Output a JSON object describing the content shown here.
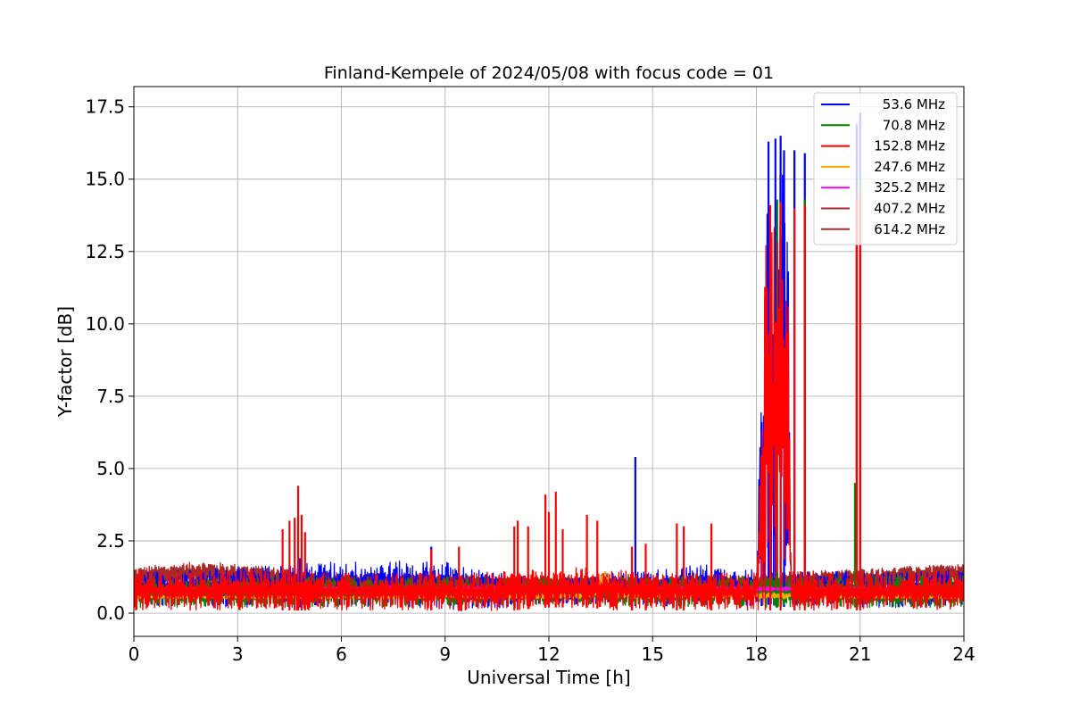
{
  "chart_data": {
    "type": "line",
    "title": "Finland-Kempele of 2024/05/08 with focus code = 01",
    "xlabel": "Universal Time [h]",
    "ylabel": "Y-factor [dB]",
    "xlim": [
      0,
      24
    ],
    "ylim": [
      -0.8,
      18.2
    ],
    "xticks": [
      0,
      3,
      6,
      9,
      12,
      15,
      18,
      21,
      24
    ],
    "xtick_labels": [
      "0",
      "3",
      "6",
      "9",
      "12",
      "15",
      "18",
      "21",
      "24"
    ],
    "yticks": [
      0.0,
      2.5,
      5.0,
      7.5,
      10.0,
      12.5,
      15.0,
      17.5
    ],
    "ytick_labels": [
      "0.0",
      "2.5",
      "5.0",
      "7.5",
      "10.0",
      "12.5",
      "15.0",
      "17.5"
    ],
    "grid": true,
    "legend_position": "top-right",
    "series": [
      {
        "name": "53.6 MHz",
        "color": "#0000ff",
        "band": [
          [
            0,
            0.3,
            1.4
          ],
          [
            3,
            0.2,
            1.6
          ],
          [
            4.5,
            0.2,
            1.7
          ],
          [
            6,
            0.2,
            1.8
          ],
          [
            8,
            0.2,
            1.8
          ],
          [
            9,
            0.1,
            1.8
          ],
          [
            10,
            0.1,
            1.5
          ],
          [
            11,
            0.2,
            1.3
          ],
          [
            12,
            0.3,
            1.2
          ],
          [
            13,
            0.3,
            1.3
          ],
          [
            14,
            0.3,
            1.4
          ],
          [
            15,
            0.2,
            1.5
          ],
          [
            16.5,
            0.3,
            1.7
          ],
          [
            18,
            0.2,
            1.5
          ],
          [
            18.3,
            0.3,
            16.2
          ],
          [
            18.9,
            0.2,
            15.5
          ],
          [
            19,
            0.3,
            1.4
          ],
          [
            20.8,
            0.2,
            1.5
          ],
          [
            21.1,
            0.2,
            1.4
          ],
          [
            24,
            0.2,
            1.5
          ]
        ],
        "spikes": [
          [
            4.8,
            1.9
          ],
          [
            8.6,
            2.3
          ],
          [
            14.5,
            5.4
          ],
          [
            18.15,
            6.6
          ],
          [
            18.35,
            16.3
          ],
          [
            18.55,
            16.4
          ],
          [
            18.7,
            16.5
          ],
          [
            18.8,
            16.0
          ],
          [
            19.1,
            16.0
          ],
          [
            19.4,
            15.9
          ],
          [
            20.9,
            16.9
          ],
          [
            21.0,
            17.3
          ]
        ]
      },
      {
        "name": "70.8 MHz",
        "color": "#008000",
        "band": [
          [
            0,
            0.2,
            1.2
          ],
          [
            6,
            0.2,
            1.3
          ],
          [
            12,
            0.3,
            1.2
          ],
          [
            18,
            0.2,
            1.3
          ],
          [
            24,
            0.2,
            1.3
          ]
        ],
        "spikes": [
          [
            18.6,
            14.3
          ],
          [
            19.4,
            14.3
          ],
          [
            20.85,
            4.5
          ],
          [
            21.0,
            15.0
          ]
        ]
      },
      {
        "name": "152.8 MHz",
        "color": "#ff0000",
        "band": [
          [
            0,
            0.1,
            1.5
          ],
          [
            3,
            0.1,
            1.5
          ],
          [
            4,
            0.1,
            1.5
          ],
          [
            6,
            0.1,
            1.4
          ],
          [
            9,
            0.1,
            1.4
          ],
          [
            10,
            0.05,
            1.4
          ],
          [
            11,
            0.1,
            1.5
          ],
          [
            12,
            0.2,
            1.5
          ],
          [
            13,
            0.2,
            1.6
          ],
          [
            14,
            0.1,
            1.5
          ],
          [
            15,
            0.1,
            1.4
          ],
          [
            16,
            0.1,
            1.4
          ],
          [
            18,
            0.1,
            1.4
          ],
          [
            18.3,
            0.1,
            14.0
          ],
          [
            18.9,
            0.1,
            13.9
          ],
          [
            19.0,
            0.1,
            1.4
          ],
          [
            20.8,
            0.1,
            1.4
          ],
          [
            21.1,
            0.1,
            1.4
          ],
          [
            24,
            0.1,
            1.5
          ]
        ],
        "spikes": [
          [
            4.3,
            2.9
          ],
          [
            4.5,
            3.2
          ],
          [
            4.65,
            3.3
          ],
          [
            4.75,
            4.4
          ],
          [
            4.85,
            3.4
          ],
          [
            4.95,
            2.8
          ],
          [
            8.6,
            2.2
          ],
          [
            9.4,
            2.3
          ],
          [
            11.0,
            3.0
          ],
          [
            11.1,
            3.2
          ],
          [
            11.4,
            3.0
          ],
          [
            11.9,
            4.1
          ],
          [
            12.0,
            3.5
          ],
          [
            12.2,
            4.2
          ],
          [
            12.4,
            2.9
          ],
          [
            13.1,
            3.4
          ],
          [
            13.4,
            3.2
          ],
          [
            14.4,
            2.3
          ],
          [
            14.8,
            2.4
          ],
          [
            15.7,
            3.1
          ],
          [
            15.9,
            3.0
          ],
          [
            16.7,
            3.1
          ],
          [
            18.4,
            14.1
          ],
          [
            18.7,
            14.2
          ],
          [
            19.1,
            14.0
          ],
          [
            19.4,
            14.1
          ],
          [
            20.9,
            14.3
          ],
          [
            21.0,
            14.5
          ]
        ]
      },
      {
        "name": "247.6 MHz",
        "color": "#ffa500",
        "band": [
          [
            0,
            0.5,
            0.62
          ],
          [
            6,
            0.5,
            0.6
          ],
          [
            13.3,
            0.5,
            0.7
          ],
          [
            13.6,
            0.6,
            1.8
          ],
          [
            13.9,
            0.5,
            0.8
          ],
          [
            24,
            0.5,
            0.6
          ]
        ],
        "spikes": []
      },
      {
        "name": "325.2 MHz",
        "color": "#ff00ff",
        "band": [
          [
            0,
            0.75,
            0.9
          ],
          [
            12,
            0.75,
            0.95
          ],
          [
            24,
            0.75,
            0.9
          ]
        ],
        "spikes": []
      },
      {
        "name": "407.2 MHz",
        "color": "#a52a2a",
        "band": [
          [
            0,
            0.9,
            1.5
          ],
          [
            2,
            1.0,
            1.75
          ],
          [
            4,
            0.9,
            1.5
          ],
          [
            6,
            0.9,
            1.3
          ],
          [
            12,
            0.8,
            1.2
          ],
          [
            18,
            0.8,
            1.2
          ],
          [
            18.3,
            0.8,
            1.3
          ],
          [
            24,
            1.0,
            1.7
          ]
        ],
        "spikes": []
      },
      {
        "name": "614.2 MHz",
        "color": "#a52a2a",
        "band": [
          [
            0,
            0.9,
            1.6
          ],
          [
            2,
            1.1,
            1.8
          ],
          [
            4,
            1.0,
            1.6
          ],
          [
            6,
            0.9,
            1.4
          ],
          [
            12,
            0.8,
            1.3
          ],
          [
            18,
            0.8,
            1.3
          ],
          [
            18.3,
            0.8,
            1.4
          ],
          [
            24,
            1.1,
            1.7
          ]
        ],
        "spikes": []
      }
    ]
  }
}
